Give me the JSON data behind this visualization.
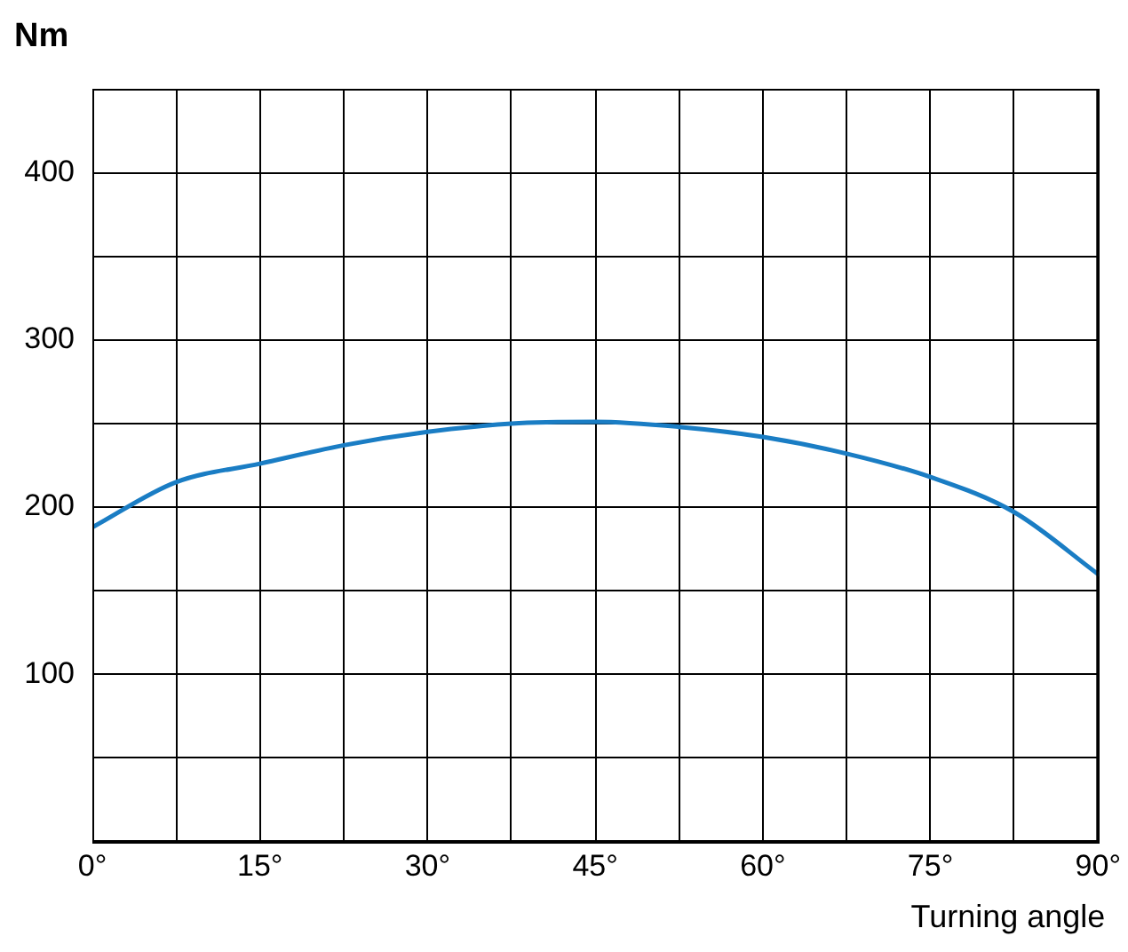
{
  "chart_data": {
    "type": "line",
    "ylabel": "Nm",
    "xlabel": "Turning angle",
    "x": [
      0,
      7.5,
      15,
      22.5,
      30,
      37.5,
      45,
      52.5,
      60,
      67.5,
      75,
      82.5,
      90
    ],
    "series": [
      {
        "color": "#1a7dc4",
        "values": [
          188,
          215,
          226,
          237,
          245,
          250,
          251,
          248,
          242,
          232,
          218,
          197,
          160
        ]
      }
    ],
    "xlim": [
      0,
      90
    ],
    "xticks": [
      {
        "value": 0,
        "label": "0°"
      },
      {
        "value": 7.5,
        "label": null
      },
      {
        "value": 15,
        "label": "15°"
      },
      {
        "value": 22.5,
        "label": null
      },
      {
        "value": 30,
        "label": "30°"
      },
      {
        "value": 37.5,
        "label": null
      },
      {
        "value": 45,
        "label": "45°"
      },
      {
        "value": 52.5,
        "label": null
      },
      {
        "value": 60,
        "label": "60°"
      },
      {
        "value": 67.5,
        "label": null
      },
      {
        "value": 75,
        "label": "75°"
      },
      {
        "value": 82.5,
        "label": null
      },
      {
        "value": 90,
        "label": "90°"
      }
    ],
    "ylim": [
      0,
      450
    ],
    "yticks": [
      {
        "value": 0,
        "label": null
      },
      {
        "value": 50,
        "label": null
      },
      100,
      {
        "value": 150,
        "label": null
      },
      200,
      {
        "value": 250,
        "label": null
      },
      300,
      {
        "value": 350,
        "label": null
      },
      400,
      {
        "value": 450,
        "label": null
      }
    ],
    "grid": true,
    "legend": false,
    "marker": "none",
    "line_style": "solid"
  }
}
